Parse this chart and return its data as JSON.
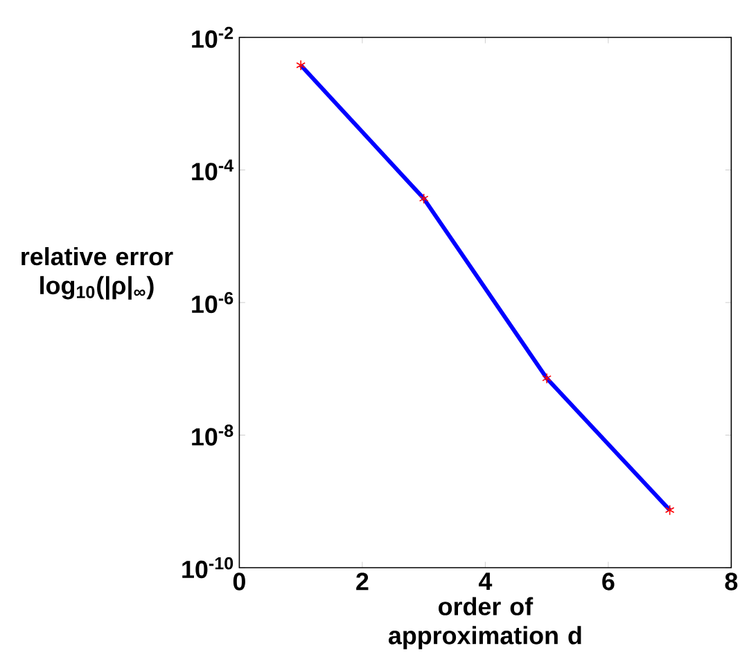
{
  "chart_data": {
    "type": "line",
    "xlabel": "order of approximation d",
    "ylabel": "relative error log$_{10}$(|ρ|$_{∞}$)",
    "x": [
      1,
      3,
      5,
      7
    ],
    "series": [
      {
        "color": "#0000ff",
        "marker": "none",
        "values": [
          0.0038,
          3.7e-05,
          7.2e-08,
          7.4e-10
        ]
      },
      {
        "type": "scatter",
        "color": "#ff0000",
        "marker": "cross",
        "values": [
          0.0038,
          3.7e-05,
          7.2e-08,
          7.4e-10
        ]
      }
    ],
    "log": "y",
    "xlim": [
      0,
      8
    ],
    "ylim": [
      1e-10,
      0.01
    ],
    "xticks": [
      0,
      2,
      4,
      6,
      8
    ],
    "yticks": [
      {
        "value": 1e-10,
        "label": "10$^{-10}$"
      },
      {
        "value": 1e-08,
        "label": "10$^{-8}$"
      },
      {
        "value": 1e-06,
        "label": "10$^{-6}$"
      },
      {
        "value": 0.0001,
        "label": "10$^{-4}$"
      },
      {
        "value": 0.01,
        "label": "10$^{-2}$"
      }
    ],
    "grid": false
  }
}
